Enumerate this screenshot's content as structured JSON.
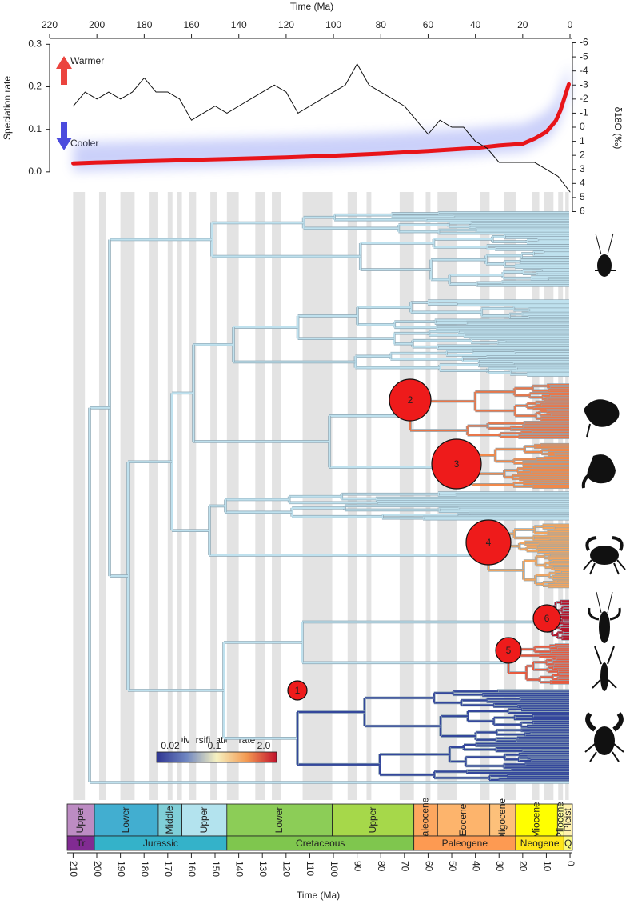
{
  "chart_data": {
    "type": "line",
    "xlabel": "Time (Ma)",
    "ylabel": "Speciation rate",
    "y2label": "δ18O (‰)",
    "xlim": [
      220,
      0
    ],
    "xticks": [
      220,
      200,
      180,
      160,
      140,
      120,
      100,
      80,
      60,
      40,
      20,
      0
    ],
    "ylim": [
      -0.1,
      0.31
    ],
    "yticks": [
      {
        "value": 0,
        "label": "0.0"
      },
      0.1,
      0.2,
      0.3
    ],
    "y2lim": [
      6.2,
      -6.2
    ],
    "y2ticks": [
      -6,
      -5,
      -4,
      -3,
      -2,
      -1,
      0,
      1,
      2,
      3,
      4,
      5,
      6
    ],
    "annotations": [
      {
        "text": "Warmer",
        "color": "#e8231c"
      },
      {
        "text": "Cooler",
        "color": "#2b2bd8"
      }
    ],
    "series": [
      {
        "color": "#e8141a",
        "axis": "y",
        "x": [
          210,
          200,
          180,
          160,
          140,
          120,
          100,
          80,
          60,
          40,
          30,
          20,
          15,
          10,
          6,
          4,
          2,
          0.5
        ],
        "values": [
          0.02,
          0.022,
          0.025,
          0.028,
          0.031,
          0.034,
          0.038,
          0.043,
          0.049,
          0.056,
          0.062,
          0.066,
          0.078,
          0.094,
          0.12,
          0.145,
          0.18,
          0.206
        ]
      },
      {
        "color": "#111111",
        "axis": "y2",
        "x": [
          210,
          205,
          200,
          195,
          190,
          185,
          180,
          175,
          170,
          165,
          160,
          155,
          150,
          145,
          140,
          135,
          130,
          125,
          120,
          115,
          110,
          105,
          100,
          95,
          90,
          85,
          80,
          75,
          70,
          65,
          60,
          55,
          50,
          45,
          40,
          35,
          30,
          25,
          20,
          15,
          10,
          5,
          0
        ],
        "values": [
          -1.5,
          -2.5,
          -2.0,
          -2.5,
          -2.0,
          -2.5,
          -3.5,
          -2.5,
          -2.5,
          -2.0,
          -0.5,
          -1.0,
          -1.5,
          -1.0,
          -1.5,
          -2.0,
          -2.5,
          -3.0,
          -2.5,
          -1.0,
          -1.5,
          -2.0,
          -2.5,
          -3.0,
          -4.5,
          -3.0,
          -2.5,
          -2.0,
          -1.5,
          -0.5,
          0.5,
          -0.5,
          0.0,
          0.0,
          1.0,
          1.5,
          2.5,
          2.5,
          2.5,
          2.5,
          3.0,
          3.5,
          4.6
        ]
      }
    ]
  },
  "phylogeny": {
    "shifts": [
      {
        "label": "1"
      },
      {
        "label": "2"
      },
      {
        "label": "3"
      },
      {
        "label": "4"
      },
      {
        "label": "5"
      },
      {
        "label": "6"
      }
    ],
    "colorbar": {
      "title": "Diversification rate",
      "ticks": [
        0.02,
        0.1,
        {
          "value": 2,
          "label": "2.0"
        }
      ],
      "colors": [
        "#2e3592",
        "#6f86c1",
        "#f6f1c0",
        "#f39a52",
        "#c2122c"
      ]
    }
  },
  "timescale": {
    "xlabel": "Time (Ma)",
    "xlim": [
      212.5,
      -1
    ],
    "xticks": [
      210,
      200,
      190,
      180,
      170,
      160,
      150,
      140,
      130,
      120,
      110,
      100,
      90,
      80,
      70,
      60,
      50,
      40,
      30,
      20,
      10,
      0
    ],
    "epochs": [
      {
        "label": "Upper",
        "start": 212.5,
        "end": 201,
        "color": "#bd8cc3"
      },
      {
        "label": "Lower",
        "start": 201,
        "end": 174,
        "color": "#42aed0"
      },
      {
        "label": "Middle",
        "start": 174,
        "end": 164,
        "color": "#80cfd8"
      },
      {
        "label": "Upper",
        "start": 164,
        "end": 145,
        "color": "#b3e3ee"
      },
      {
        "label": "Lower",
        "start": 145,
        "end": 100.5,
        "color": "#8ccd57"
      },
      {
        "label": "Upper",
        "start": 100.5,
        "end": 66,
        "color": "#a6d84a"
      },
      {
        "label": "Paleocene",
        "start": 66,
        "end": 56,
        "color": "#fda75f"
      },
      {
        "label": "Eocene",
        "start": 56,
        "end": 33.9,
        "color": "#fdb46c"
      },
      {
        "label": "Oligocene",
        "start": 33.9,
        "end": 23,
        "color": "#fdc07a"
      },
      {
        "label": "Miocene",
        "start": 23,
        "end": 5.3,
        "color": "#ffff00"
      },
      {
        "label": "Pliocene",
        "start": 5.3,
        "end": 2.6,
        "color": "#ffff99"
      },
      {
        "label": "Pleist",
        "start": 2.6,
        "end": -1,
        "color": "#fff2ae"
      }
    ],
    "periods": [
      {
        "label": "Tr",
        "start": 212.5,
        "end": 201,
        "color": "#812b92"
      },
      {
        "label": "Jurassic",
        "start": 201,
        "end": 145,
        "color": "#34b2c9"
      },
      {
        "label": "Cretaceous",
        "start": 145,
        "end": 66,
        "color": "#7fc64e"
      },
      {
        "label": "Paleogene",
        "start": 66,
        "end": 23,
        "color": "#fd9a52"
      },
      {
        "label": "Neogene",
        "start": 23,
        "end": 2.6,
        "color": "#ffe619"
      },
      {
        "label": "Q",
        "start": 2.6,
        "end": -1,
        "color": "#f9f97f"
      }
    ]
  }
}
